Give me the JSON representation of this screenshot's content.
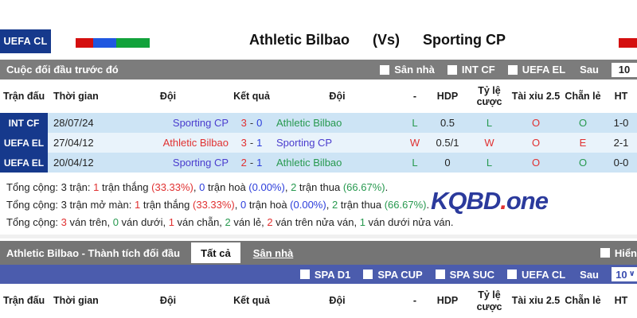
{
  "header": {
    "badge": "UEFA CL",
    "home_team": "Athletic Bilbao",
    "vs_label": "(Vs)",
    "away_team": "Sporting CP"
  },
  "h2h_section": {
    "bar_title": "Cuộc đối đầu trước đó",
    "filters": [
      "Sân nhà",
      "INT CF",
      "UEFA EL"
    ],
    "after_label": "Sau",
    "page_size": "10"
  },
  "table": {
    "headers": [
      "Trận đấu",
      "Thời gian",
      "Đội",
      "Kết quả",
      "Đội",
      "-",
      "HDP",
      "Tỷ lệ cược",
      "Tài xỉu 2.5",
      "Chẵn lẻ",
      "HT"
    ],
    "rows": [
      {
        "league": "INT CF",
        "date": "28/07/24",
        "home": {
          "t": "Sporting CP",
          "c": "p"
        },
        "s1": {
          "t": "3",
          "c": "r"
        },
        "sep": "-",
        "s2": {
          "t": "0",
          "c": "b"
        },
        "away": {
          "t": "Athletic Bilbao",
          "c": "g"
        },
        "res": {
          "t": "L",
          "c": "g"
        },
        "hdp": "0.5",
        "odds": {
          "t": "L",
          "c": "g"
        },
        "ou": {
          "t": "O",
          "c": "r"
        },
        "oe": {
          "t": "O",
          "c": "g"
        },
        "ht": "1-0"
      },
      {
        "league": "UEFA EL",
        "date": "27/04/12",
        "home": {
          "t": "Athletic Bilbao",
          "c": "r"
        },
        "s1": {
          "t": "3",
          "c": "r"
        },
        "sep": "-",
        "s2": {
          "t": "1",
          "c": "b"
        },
        "away": {
          "t": "Sporting CP",
          "c": "p"
        },
        "res": {
          "t": "W",
          "c": "r"
        },
        "hdp": "0.5/1",
        "odds": {
          "t": "W",
          "c": "r"
        },
        "ou": {
          "t": "O",
          "c": "r"
        },
        "oe": {
          "t": "E",
          "c": "r"
        },
        "ht": "2-1"
      },
      {
        "league": "UEFA EL",
        "date": "20/04/12",
        "home": {
          "t": "Sporting CP",
          "c": "p"
        },
        "s1": {
          "t": "2",
          "c": "r"
        },
        "sep": "-",
        "s2": {
          "t": "1",
          "c": "b"
        },
        "away": {
          "t": "Athletic Bilbao",
          "c": "g"
        },
        "res": {
          "t": "L",
          "c": "g"
        },
        "hdp": "0",
        "odds": {
          "t": "L",
          "c": "g"
        },
        "ou": {
          "t": "O",
          "c": "r"
        },
        "oe": {
          "t": "O",
          "c": "g"
        },
        "ht": "0-0"
      }
    ]
  },
  "summary": {
    "lines": [
      [
        {
          "t": "Tổng cộng: 3 trận: ",
          "c": "k"
        },
        {
          "t": "1",
          "c": "r"
        },
        {
          "t": " trận thắng ",
          "c": "k"
        },
        {
          "t": "(33.33%)",
          "c": "r"
        },
        {
          "t": ", ",
          "c": "k"
        },
        {
          "t": "0",
          "c": "b"
        },
        {
          "t": " trận hoà ",
          "c": "k"
        },
        {
          "t": "(0.00%)",
          "c": "b"
        },
        {
          "t": ", ",
          "c": "k"
        },
        {
          "t": "2",
          "c": "g"
        },
        {
          "t": " trận thua ",
          "c": "k"
        },
        {
          "t": "(66.67%)",
          "c": "g"
        },
        {
          "t": ".",
          "c": "k"
        }
      ],
      [
        {
          "t": "Tổng cộng: 3 trận mở màn: ",
          "c": "k"
        },
        {
          "t": "1",
          "c": "r"
        },
        {
          "t": " trận thắng ",
          "c": "k"
        },
        {
          "t": "(33.33%)",
          "c": "r"
        },
        {
          "t": ", ",
          "c": "k"
        },
        {
          "t": "0",
          "c": "b"
        },
        {
          "t": " trận hoà ",
          "c": "k"
        },
        {
          "t": "(0.00%)",
          "c": "b"
        },
        {
          "t": ", ",
          "c": "k"
        },
        {
          "t": "2",
          "c": "g"
        },
        {
          "t": " trận thua ",
          "c": "k"
        },
        {
          "t": "(66.67%)",
          "c": "g"
        },
        {
          "t": ".",
          "c": "k"
        }
      ],
      [
        {
          "t": "Tổng cộng: ",
          "c": "k"
        },
        {
          "t": "3",
          "c": "r"
        },
        {
          "t": " ván trên, ",
          "c": "k"
        },
        {
          "t": "0",
          "c": "g"
        },
        {
          "t": " ván dưới, ",
          "c": "k"
        },
        {
          "t": "1",
          "c": "r"
        },
        {
          "t": " ván chẵn, ",
          "c": "k"
        },
        {
          "t": "2",
          "c": "g"
        },
        {
          "t": " ván lẻ, ",
          "c": "k"
        },
        {
          "t": "2",
          "c": "r"
        },
        {
          "t": " ván trên nửa ván, ",
          "c": "k"
        },
        {
          "t": "1",
          "c": "g"
        },
        {
          "t": " ván dưới nửa ván.",
          "c": "k"
        }
      ]
    ]
  },
  "logo": {
    "part1": "KQBD",
    "dot": ".",
    "part2": "one"
  },
  "history_section": {
    "bar_title": "Athletic Bilbao - Thành tích đối đầu",
    "tabs": [
      {
        "label": "Tất cả",
        "active": true
      },
      {
        "label": "Sân nhà",
        "active": false
      }
    ],
    "show_label": "Hiển",
    "filters": [
      "SPA D1",
      "SPA CUP",
      "SPA SUC",
      "UEFA CL"
    ],
    "after_label": "Sau",
    "page_size": "10"
  },
  "colors": {
    "accent_navy": "#16398c",
    "bar_gray": "#7c7c7c",
    "bar_blue": "#4b5cad",
    "row_blue": "#cde4f5",
    "row_light": "#e9f3fb",
    "win_red": "#e03131",
    "draw_blue": "#2b3ddb",
    "loss_green": "#27994f",
    "team_purple": "#4a3cce",
    "logo_blue": "#2b3a9c",
    "flag_segments": [
      "#d40f0f",
      "#2057e0",
      "#12a23b"
    ],
    "flag_right": "#d40f0f"
  }
}
